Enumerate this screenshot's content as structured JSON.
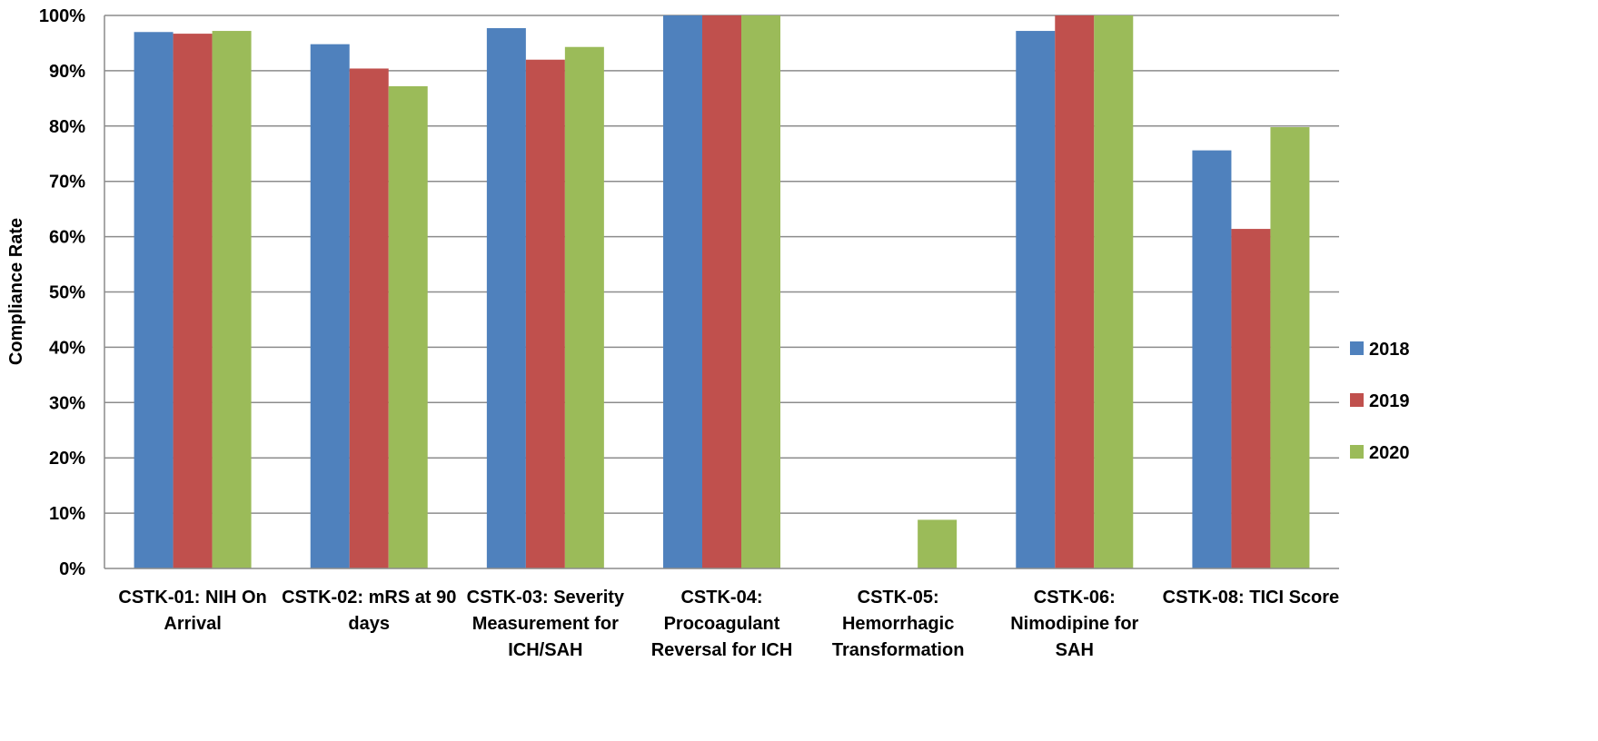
{
  "chart_data": {
    "type": "bar",
    "title": "",
    "xlabel": "",
    "ylabel": "Compliance Rate",
    "ylim": [
      0,
      100
    ],
    "yticks": [
      "0%",
      "10%",
      "20%",
      "30%",
      "40%",
      "50%",
      "60%",
      "70%",
      "80%",
      "90%",
      "100%"
    ],
    "grid": true,
    "legend_position": "right",
    "categories": [
      [
        "CSTK-01: NIH On",
        "Arrival"
      ],
      [
        "CSTK-02: mRS at 90",
        "days"
      ],
      [
        "CSTK-03: Severity",
        "Measurement for",
        "ICH/SAH"
      ],
      [
        "CSTK-04:",
        "Procoagulant",
        "Reversal for ICH"
      ],
      [
        "CSTK-05:",
        "Hemorrhagic",
        "Transformation"
      ],
      [
        "CSTK-06:",
        "Nimodipine for",
        "SAH"
      ],
      [
        "CSTK-08: TICI Score"
      ]
    ],
    "series": [
      {
        "name": "2018",
        "color": "#4F81BD",
        "values": [
          97,
          94.8,
          97.7,
          100,
          null,
          97.2,
          75.6
        ]
      },
      {
        "name": "2019",
        "color": "#C0504D",
        "values": [
          96.7,
          90.4,
          92,
          100,
          null,
          100,
          61.4
        ]
      },
      {
        "name": "2020",
        "color": "#9BBB59",
        "values": [
          97.2,
          87.2,
          94.3,
          100,
          8.8,
          100,
          79.8
        ]
      }
    ]
  }
}
